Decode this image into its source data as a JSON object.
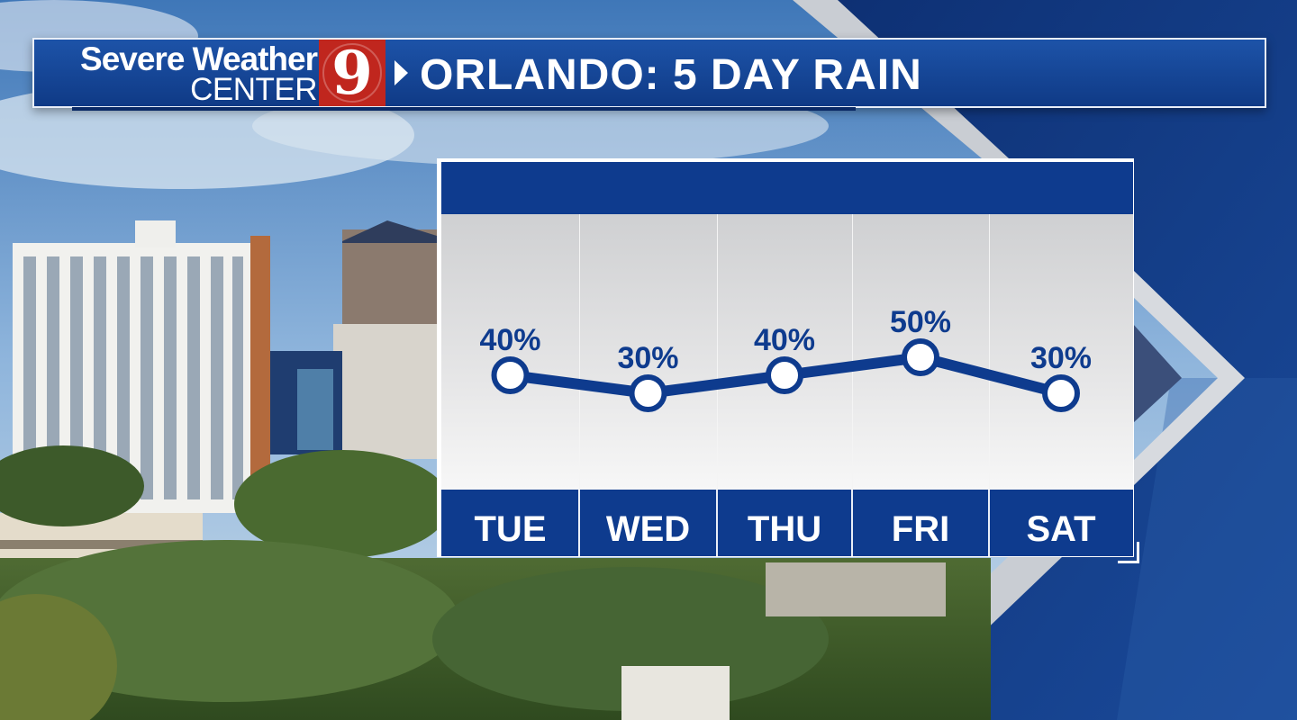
{
  "header": {
    "brand_line1": "Severe Weather",
    "brand_line2": "CENTER",
    "channel_number": "9",
    "title": "ORLANDO: 5 DAY RAIN"
  },
  "colors": {
    "brand_blue": "#0e3b8e",
    "header_blue": "#1d53a8",
    "logo_red": "#c0261e",
    "marker_fill": "#ffffff"
  },
  "chart_data": {
    "type": "line",
    "categories": [
      "TUE",
      "WED",
      "THU",
      "FRI",
      "SAT"
    ],
    "values": [
      40,
      30,
      40,
      50,
      30
    ],
    "value_labels": [
      "40%",
      "30%",
      "40%",
      "50%",
      "30%"
    ],
    "unit": "%",
    "xlabel": "",
    "ylabel": "",
    "grid": "vertical dividers only"
  }
}
